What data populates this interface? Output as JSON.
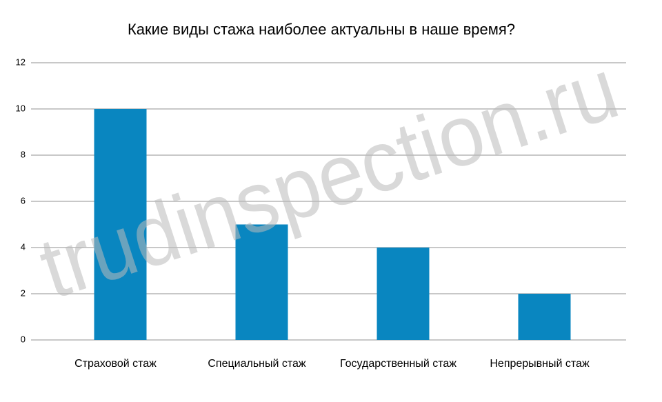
{
  "chart_data": {
    "type": "bar",
    "title": "Какие виды стажа наиболее актуальны в наше время?",
    "categories": [
      "Страховой стаж",
      "Специальный стаж",
      "Государственный стаж",
      "Непрерывный стаж"
    ],
    "values": [
      10,
      5,
      4,
      2
    ],
    "color": "#0986c0",
    "ylim": [
      0,
      12
    ],
    "yticks": [
      0,
      2,
      4,
      6,
      8,
      10,
      12
    ],
    "grid": true,
    "watermark": "trudinspection.ru"
  }
}
